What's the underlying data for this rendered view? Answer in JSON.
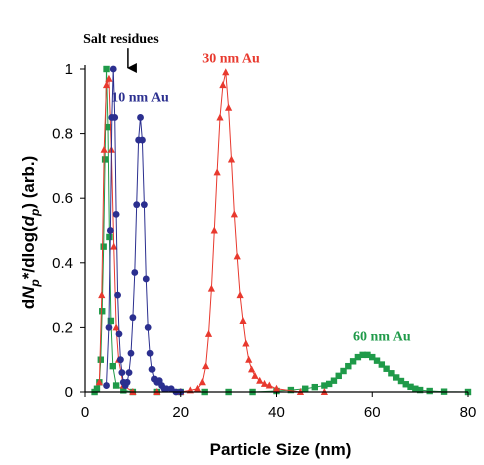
{
  "chart_data": {
    "type": "scatter",
    "title": "",
    "xlabel": "Particle Size (nm)",
    "ylabel_parts": [
      "d",
      "N",
      "p",
      "*/dlog(",
      "d",
      "p",
      ") (arb.)"
    ],
    "xlim": [
      0,
      80
    ],
    "ylim": [
      0,
      1
    ],
    "xticks": [
      0,
      20,
      40,
      60,
      80
    ],
    "yticks": [
      0,
      0.2,
      0.4,
      0.6,
      0.8,
      1
    ],
    "ytick_labels": [
      "0",
      "0.2",
      "0.4",
      "0.6",
      "0.8",
      "1"
    ],
    "grid": false,
    "series": [
      {
        "name": "10 nm Au",
        "color": "#2b2f8f",
        "marker": "circle",
        "x": [
          4.5,
          5.0,
          5.3,
          5.6,
          5.9,
          6.2,
          6.5,
          6.8,
          7.1,
          7.4,
          7.7,
          8.0,
          8.4,
          8.8,
          9.2,
          9.6,
          10.0,
          10.4,
          10.8,
          11.2,
          11.6,
          12.0,
          12.4,
          12.8,
          13.2,
          13.6,
          14.0,
          14.5,
          15.0,
          15.5,
          16.0,
          16.5,
          17.0,
          18.0,
          19.0,
          20.0
        ],
        "y": [
          0.02,
          0.2,
          0.5,
          0.85,
          1.0,
          0.85,
          0.55,
          0.3,
          0.18,
          0.1,
          0.06,
          0.03,
          0.02,
          0.03,
          0.06,
          0.12,
          0.23,
          0.37,
          0.58,
          0.78,
          0.85,
          0.78,
          0.58,
          0.35,
          0.2,
          0.12,
          0.07,
          0.04,
          0.03,
          0.035,
          0.02,
          0.01,
          0.01,
          0.01,
          0.0,
          0.0
        ]
      },
      {
        "name": "30 nm Au",
        "color": "#e8392e",
        "marker": "triangle",
        "x": [
          3.0,
          3.5,
          4.0,
          4.5,
          5.0,
          5.5,
          6.0,
          6.5,
          7.0,
          8.0,
          10.0,
          15.0,
          20.0,
          22.0,
          23.5,
          24.5,
          25.2,
          25.8,
          26.4,
          27.0,
          27.6,
          28.2,
          28.8,
          29.4,
          30.0,
          30.6,
          31.2,
          31.8,
          32.4,
          33.0,
          33.6,
          34.2,
          34.8,
          35.5,
          36.5,
          37.5,
          38.5,
          40.0,
          45.0,
          50.0
        ],
        "y": [
          0.03,
          0.3,
          0.75,
          0.95,
          0.97,
          0.75,
          0.45,
          0.2,
          0.1,
          0.02,
          0.0,
          0.0,
          0.0,
          0.005,
          0.01,
          0.03,
          0.08,
          0.18,
          0.32,
          0.5,
          0.68,
          0.85,
          0.95,
          0.99,
          0.88,
          0.72,
          0.55,
          0.42,
          0.3,
          0.22,
          0.15,
          0.1,
          0.07,
          0.05,
          0.035,
          0.025,
          0.02,
          0.01,
          0.0,
          0.0
        ]
      },
      {
        "name": "60 nm Au",
        "color": "#1f9a49",
        "marker": "square",
        "x": [
          2.0,
          2.5,
          3.0,
          3.3,
          3.6,
          3.9,
          4.2,
          4.5,
          4.8,
          5.1,
          5.4,
          5.8,
          6.5,
          8.0,
          10.0,
          15.0,
          20.0,
          25.0,
          30.0,
          35.0,
          40.0,
          43.0,
          46.0,
          48.0,
          50.0,
          51.0,
          52.0,
          53.0,
          54.0,
          55.0,
          56.0,
          57.0,
          58.0,
          59.0,
          60.0,
          61.0,
          62.0,
          63.0,
          64.0,
          65.0,
          66.0,
          67.0,
          68.0,
          69.0,
          70.0,
          72.0,
          75.0,
          80.0
        ],
        "y": [
          0.0,
          0.01,
          0.03,
          0.1,
          0.25,
          0.45,
          0.72,
          1.0,
          0.82,
          0.48,
          0.22,
          0.08,
          0.02,
          0.005,
          0.0,
          0.0,
          0.0,
          0.0,
          0.0,
          0.0,
          0.003,
          0.006,
          0.01,
          0.015,
          0.02,
          0.025,
          0.035,
          0.05,
          0.065,
          0.08,
          0.095,
          0.108,
          0.115,
          0.115,
          0.108,
          0.097,
          0.085,
          0.072,
          0.058,
          0.045,
          0.034,
          0.024,
          0.016,
          0.01,
          0.006,
          0.003,
          0.001,
          0.0
        ]
      }
    ],
    "annotations": [
      {
        "text": "Salt residues",
        "color": "#000000",
        "x": 7.5,
        "y": 1.08,
        "arrow_to": [
          7.5,
          1.0
        ]
      },
      {
        "text": "10 nm Au",
        "color": "#2b2f8f",
        "x": 11.5,
        "y": 0.9
      },
      {
        "text": "30 nm Au",
        "color": "#e8392e",
        "x": 30.5,
        "y": 1.02
      },
      {
        "text": "60 nm Au",
        "color": "#1f9a49",
        "x": 62,
        "y": 0.16
      }
    ]
  }
}
